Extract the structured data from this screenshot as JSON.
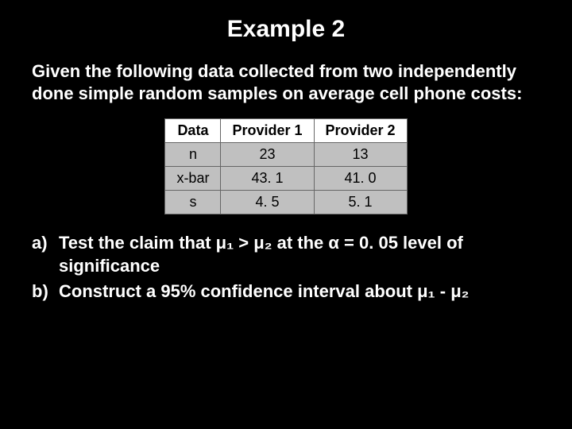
{
  "title": "Example 2",
  "intro": "Given the following data collected from two independently done simple random samples on average cell phone costs:",
  "table": {
    "columns": [
      "Data",
      "Provider 1",
      "Provider 2"
    ],
    "rows": [
      [
        "n",
        "23",
        "13"
      ],
      [
        "x-bar",
        "43. 1",
        "41. 0"
      ],
      [
        "s",
        "4. 5",
        "5. 1"
      ]
    ],
    "header_bg": "#ffffff",
    "cell_bg": "#c0c0c0",
    "border_color": "#666666",
    "text_color": "#000000",
    "fontsize": 18
  },
  "questions": {
    "a_marker": "a)",
    "a_text": "Test the claim that μ₁ > μ₂ at the α = 0. 05 level of significance",
    "b_marker": "b)",
    "b_text": "Construct a 95% confidence interval about μ₁ - μ₂"
  },
  "colors": {
    "background": "#000000",
    "text": "#ffffff"
  },
  "font": {
    "title_size": 30,
    "body_size": 22,
    "weight": "bold"
  }
}
